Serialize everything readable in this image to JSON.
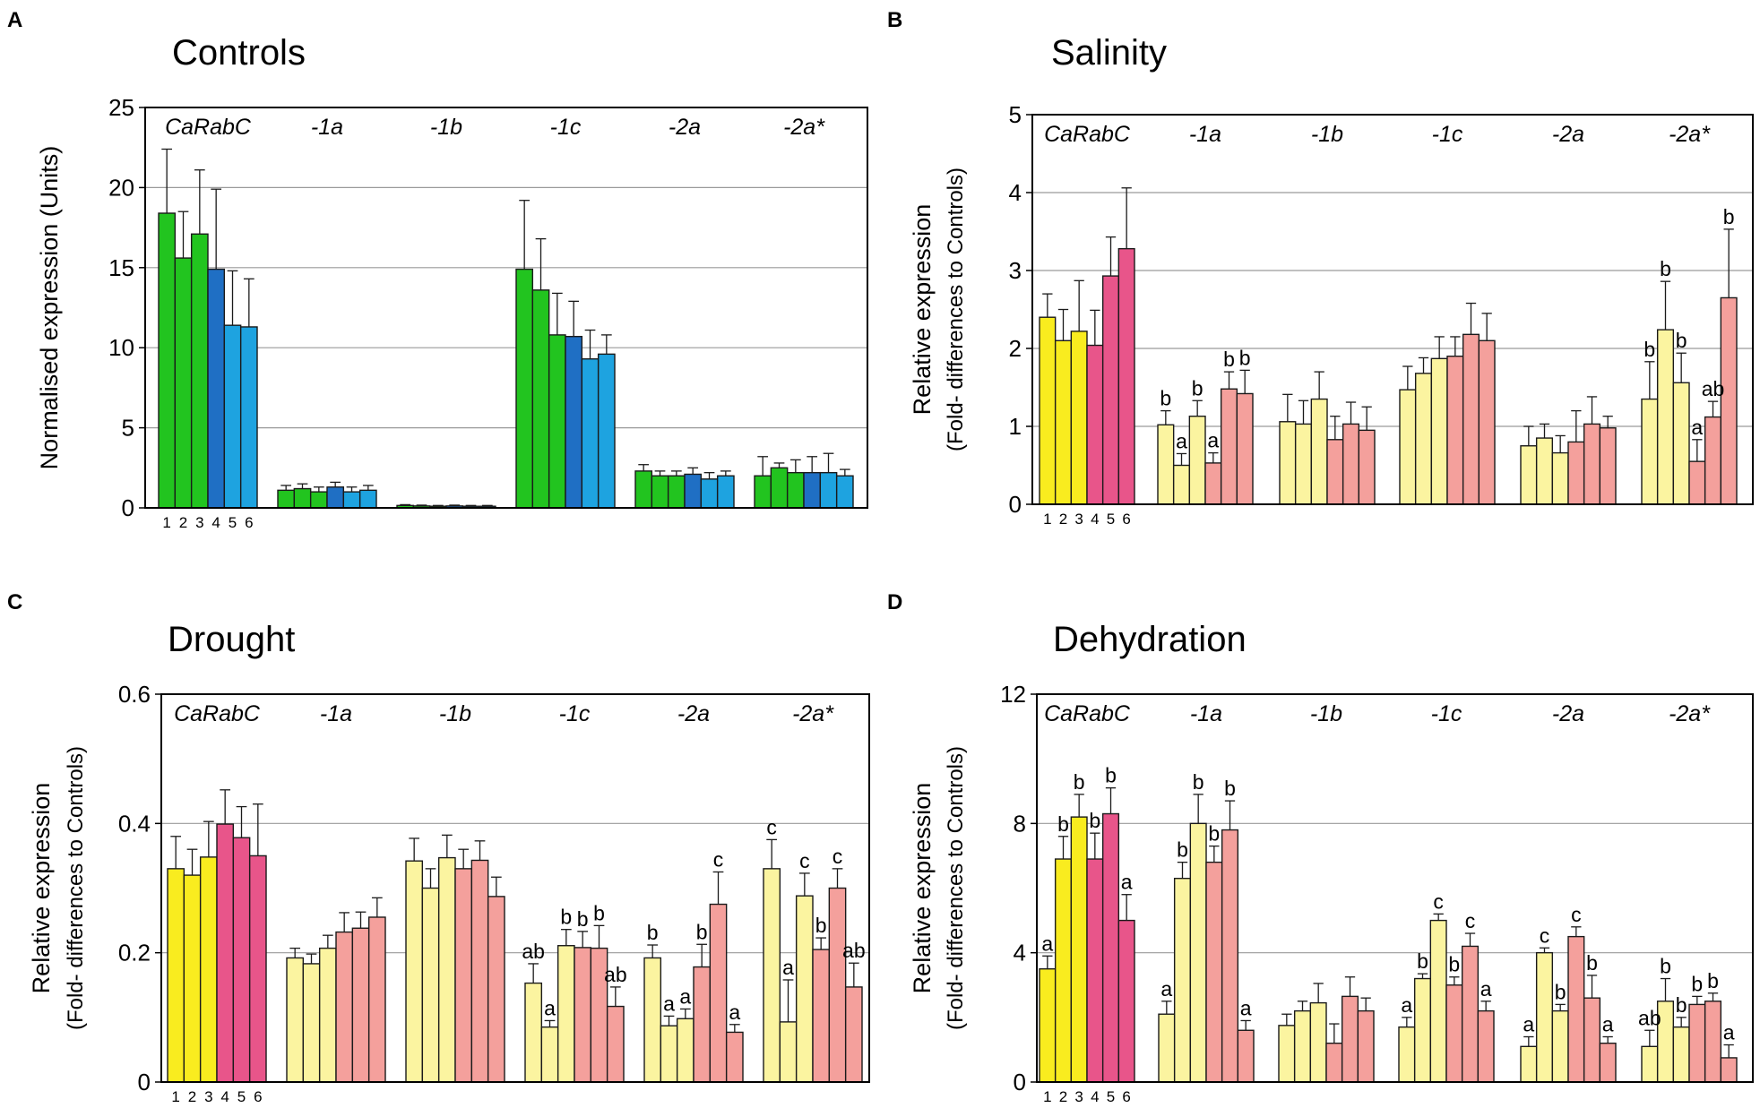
{
  "figure": {
    "x_ticks": [
      "1",
      "2",
      "3",
      "4",
      "5",
      "6"
    ],
    "group_labels": [
      "CaRabC",
      "-1a",
      "-1b",
      "-1c",
      "-2a",
      "-2a*"
    ]
  },
  "chart_data": [
    {
      "panel": "A",
      "type": "bar",
      "title": "Controls",
      "ylabel": "Normalised expression (Units)",
      "ylabel2": "",
      "ylim": [
        0,
        25
      ],
      "yticks": [
        "0",
        "5",
        "10",
        "15",
        "20",
        "25"
      ],
      "colors": [
        "#22c41f",
        "#22c41f",
        "#22c41f",
        "#1f6fc4",
        "#1ea3e0",
        "#1ea3e0"
      ],
      "groups": [
        {
          "label": "CaRabC",
          "values": [
            18.4,
            15.6,
            17.1,
            14.9,
            11.4,
            11.3
          ],
          "errors": [
            4.0,
            2.9,
            4.0,
            5.0,
            3.4,
            3.0
          ]
        },
        {
          "label": "-1a",
          "values": [
            1.1,
            1.2,
            1.0,
            1.3,
            1.0,
            1.1
          ],
          "errors": [
            0.3,
            0.3,
            0.3,
            0.3,
            0.3,
            0.3
          ]
        },
        {
          "label": "-1b",
          "values": [
            0.15,
            0.12,
            0.1,
            0.12,
            0.1,
            0.1
          ],
          "errors": [
            0.05,
            0.05,
            0.05,
            0.05,
            0.05,
            0.05
          ]
        },
        {
          "label": "-1c",
          "values": [
            14.9,
            13.6,
            10.8,
            10.7,
            9.3,
            9.6
          ],
          "errors": [
            4.3,
            3.2,
            2.6,
            2.2,
            1.8,
            1.2
          ]
        },
        {
          "label": "-2a",
          "values": [
            2.3,
            2.0,
            2.0,
            2.1,
            1.8,
            2.0
          ],
          "errors": [
            0.4,
            0.3,
            0.3,
            0.4,
            0.4,
            0.3
          ]
        },
        {
          "label": "-2a*",
          "values": [
            2.0,
            2.5,
            2.2,
            2.2,
            2.2,
            2.0
          ],
          "errors": [
            1.2,
            0.3,
            0.8,
            1.0,
            1.2,
            0.4
          ]
        }
      ],
      "sig_letters": []
    },
    {
      "panel": "B",
      "type": "bar",
      "title": "Salinity",
      "ylabel": "Relative expression",
      "ylabel2": "(Fold- differences to Controls)",
      "ylim": [
        0,
        5
      ],
      "yticks": [
        "0",
        "1",
        "2",
        "3",
        "4",
        "5"
      ],
      "colors": [
        "#f9ec1f",
        "#f9ec1f",
        "#f9ec1f",
        "#e8558a",
        "#e8558a",
        "#e8558a"
      ],
      "colors_pale": [
        "#fbf4a0",
        "#fbf4a0",
        "#fbf4a0",
        "#f4a09c",
        "#f4a09c",
        "#f4a09c"
      ],
      "groups": [
        {
          "label": "CaRabC",
          "values": [
            2.4,
            2.1,
            2.22,
            2.04,
            2.93,
            3.28
          ],
          "errors": [
            0.3,
            0.4,
            0.65,
            0.45,
            0.5,
            0.78
          ]
        },
        {
          "label": "-1a",
          "values": [
            1.02,
            0.5,
            1.13,
            0.53,
            1.48,
            1.42
          ],
          "errors": [
            0.18,
            0.15,
            0.2,
            0.13,
            0.22,
            0.3
          ]
        },
        {
          "label": "-1b",
          "values": [
            1.06,
            1.03,
            1.35,
            0.83,
            1.03,
            0.95
          ],
          "errors": [
            0.35,
            0.3,
            0.35,
            0.3,
            0.28,
            0.3
          ]
        },
        {
          "label": "-1c",
          "values": [
            1.47,
            1.68,
            1.87,
            1.9,
            2.18,
            2.1
          ],
          "errors": [
            0.3,
            0.2,
            0.28,
            0.25,
            0.4,
            0.35
          ]
        },
        {
          "label": "-2a",
          "values": [
            0.75,
            0.85,
            0.66,
            0.8,
            1.03,
            0.98
          ],
          "errors": [
            0.25,
            0.18,
            0.22,
            0.4,
            0.35,
            0.15
          ]
        },
        {
          "label": "-2a*",
          "values": [
            1.35,
            2.24,
            1.56,
            0.55,
            1.12,
            2.65
          ],
          "errors": [
            0.48,
            0.62,
            0.38,
            0.28,
            0.2,
            0.88
          ]
        }
      ],
      "sig_letters": [
        {
          "group": 1,
          "bar": 0,
          "text": "b"
        },
        {
          "group": 1,
          "bar": 1,
          "text": "a"
        },
        {
          "group": 1,
          "bar": 2,
          "text": "b"
        },
        {
          "group": 1,
          "bar": 3,
          "text": "a"
        },
        {
          "group": 1,
          "bar": 4,
          "text": "b"
        },
        {
          "group": 1,
          "bar": 5,
          "text": "b"
        },
        {
          "group": 5,
          "bar": 0,
          "text": "b"
        },
        {
          "group": 5,
          "bar": 1,
          "text": "b"
        },
        {
          "group": 5,
          "bar": 2,
          "text": "b"
        },
        {
          "group": 5,
          "bar": 3,
          "text": "a"
        },
        {
          "group": 5,
          "bar": 4,
          "text": "ab"
        },
        {
          "group": 5,
          "bar": 5,
          "text": "b"
        }
      ]
    },
    {
      "panel": "C",
      "type": "bar",
      "title": "Drought",
      "ylabel": "Relative expression",
      "ylabel2": "(Fold- differences to Controls)",
      "ylim": [
        0,
        0.6
      ],
      "yticks": [
        "0",
        "0.2",
        "0.4",
        "0.6"
      ],
      "colors": [
        "#f9ec1f",
        "#f9ec1f",
        "#f9ec1f",
        "#e8558a",
        "#e8558a",
        "#e8558a"
      ],
      "colors_pale": [
        "#fbf4a0",
        "#fbf4a0",
        "#fbf4a0",
        "#f4a09c",
        "#f4a09c",
        "#f4a09c"
      ],
      "groups": [
        {
          "label": "CaRabC",
          "values": [
            0.33,
            0.32,
            0.348,
            0.399,
            0.378,
            0.35
          ],
          "errors": [
            0.05,
            0.04,
            0.055,
            0.053,
            0.048,
            0.08
          ]
        },
        {
          "label": "-1a",
          "values": [
            0.192,
            0.183,
            0.207,
            0.232,
            0.238,
            0.255
          ],
          "errors": [
            0.015,
            0.015,
            0.02,
            0.03,
            0.025,
            0.03
          ]
        },
        {
          "label": "-1b",
          "values": [
            0.342,
            0.3,
            0.347,
            0.33,
            0.343,
            0.287
          ],
          "errors": [
            0.035,
            0.03,
            0.035,
            0.03,
            0.03,
            0.03
          ]
        },
        {
          "label": "-1c",
          "values": [
            0.153,
            0.085,
            0.211,
            0.208,
            0.207,
            0.117
          ],
          "errors": [
            0.03,
            0.01,
            0.025,
            0.025,
            0.035,
            0.03
          ]
        },
        {
          "label": "-2a",
          "values": [
            0.192,
            0.087,
            0.098,
            0.178,
            0.275,
            0.077
          ],
          "errors": [
            0.02,
            0.015,
            0.015,
            0.035,
            0.05,
            0.012
          ]
        },
        {
          "label": "-2a*",
          "values": [
            0.33,
            0.093,
            0.288,
            0.205,
            0.3,
            0.147
          ],
          "errors": [
            0.045,
            0.065,
            0.035,
            0.018,
            0.03,
            0.037
          ]
        }
      ],
      "sig_letters": [
        {
          "group": 3,
          "bar": 0,
          "text": "ab"
        },
        {
          "group": 3,
          "bar": 1,
          "text": "a"
        },
        {
          "group": 3,
          "bar": 2,
          "text": "b"
        },
        {
          "group": 3,
          "bar": 3,
          "text": "b"
        },
        {
          "group": 3,
          "bar": 4,
          "text": "b"
        },
        {
          "group": 3,
          "bar": 5,
          "text": "ab"
        },
        {
          "group": 4,
          "bar": 0,
          "text": "b"
        },
        {
          "group": 4,
          "bar": 1,
          "text": "a"
        },
        {
          "group": 4,
          "bar": 2,
          "text": "a"
        },
        {
          "group": 4,
          "bar": 3,
          "text": "b"
        },
        {
          "group": 4,
          "bar": 4,
          "text": "c"
        },
        {
          "group": 4,
          "bar": 5,
          "text": "a"
        },
        {
          "group": 5,
          "bar": 0,
          "text": "c"
        },
        {
          "group": 5,
          "bar": 1,
          "text": "a"
        },
        {
          "group": 5,
          "bar": 2,
          "text": "c"
        },
        {
          "group": 5,
          "bar": 3,
          "text": "b"
        },
        {
          "group": 5,
          "bar": 4,
          "text": "c"
        },
        {
          "group": 5,
          "bar": 5,
          "text": "ab"
        }
      ]
    },
    {
      "panel": "D",
      "type": "bar",
      "title": "Dehydration",
      "ylabel": "Relative expression",
      "ylabel2": "(Fold- differences to Controls)",
      "ylim": [
        0,
        12
      ],
      "yticks": [
        "0",
        "4",
        "8",
        "12"
      ],
      "colors": [
        "#f9ec1f",
        "#f9ec1f",
        "#f9ec1f",
        "#e8558a",
        "#e8558a",
        "#e8558a"
      ],
      "colors_pale": [
        "#fbf4a0",
        "#fbf4a0",
        "#fbf4a0",
        "#f4a09c",
        "#f4a09c",
        "#f4a09c"
      ],
      "groups": [
        {
          "label": "CaRabC",
          "values": [
            3.5,
            6.9,
            8.2,
            6.9,
            8.3,
            5.0
          ],
          "errors": [
            0.4,
            0.7,
            0.7,
            0.8,
            0.8,
            0.8
          ]
        },
        {
          "label": "-1a",
          "values": [
            2.1,
            6.3,
            8.0,
            6.8,
            7.8,
            1.6
          ],
          "errors": [
            0.4,
            0.5,
            0.9,
            0.5,
            0.9,
            0.3
          ]
        },
        {
          "label": "-1b",
          "values": [
            1.75,
            2.2,
            2.45,
            1.2,
            2.65,
            2.2
          ],
          "errors": [
            0.35,
            0.3,
            0.6,
            0.6,
            0.6,
            0.4
          ]
        },
        {
          "label": "-1c",
          "values": [
            1.7,
            3.2,
            5.0,
            3.0,
            4.2,
            2.2
          ],
          "errors": [
            0.3,
            0.15,
            0.2,
            0.25,
            0.4,
            0.3
          ]
        },
        {
          "label": "-2a",
          "values": [
            1.1,
            4.0,
            2.2,
            4.5,
            2.6,
            1.2
          ],
          "errors": [
            0.3,
            0.15,
            0.2,
            0.3,
            0.7,
            0.2
          ]
        },
        {
          "label": "-2a*",
          "values": [
            1.1,
            2.5,
            1.7,
            2.4,
            2.5,
            0.75
          ],
          "errors": [
            0.5,
            0.7,
            0.3,
            0.25,
            0.25,
            0.4
          ]
        }
      ],
      "sig_letters": [
        {
          "group": 0,
          "bar": 0,
          "text": "a"
        },
        {
          "group": 0,
          "bar": 1,
          "text": "b"
        },
        {
          "group": 0,
          "bar": 2,
          "text": "b"
        },
        {
          "group": 0,
          "bar": 3,
          "text": "b"
        },
        {
          "group": 0,
          "bar": 4,
          "text": "b"
        },
        {
          "group": 0,
          "bar": 5,
          "text": "a"
        },
        {
          "group": 1,
          "bar": 0,
          "text": "a"
        },
        {
          "group": 1,
          "bar": 1,
          "text": "b"
        },
        {
          "group": 1,
          "bar": 2,
          "text": "b"
        },
        {
          "group": 1,
          "bar": 3,
          "text": "b"
        },
        {
          "group": 1,
          "bar": 4,
          "text": "b"
        },
        {
          "group": 1,
          "bar": 5,
          "text": "a"
        },
        {
          "group": 3,
          "bar": 0,
          "text": "a"
        },
        {
          "group": 3,
          "bar": 1,
          "text": "b"
        },
        {
          "group": 3,
          "bar": 2,
          "text": "c"
        },
        {
          "group": 3,
          "bar": 3,
          "text": "b"
        },
        {
          "group": 3,
          "bar": 4,
          "text": "c"
        },
        {
          "group": 3,
          "bar": 5,
          "text": "a"
        },
        {
          "group": 4,
          "bar": 0,
          "text": "a"
        },
        {
          "group": 4,
          "bar": 1,
          "text": "c"
        },
        {
          "group": 4,
          "bar": 2,
          "text": "b"
        },
        {
          "group": 4,
          "bar": 3,
          "text": "c"
        },
        {
          "group": 4,
          "bar": 4,
          "text": "b"
        },
        {
          "group": 4,
          "bar": 5,
          "text": "a"
        },
        {
          "group": 5,
          "bar": 0,
          "text": "ab"
        },
        {
          "group": 5,
          "bar": 1,
          "text": "b"
        },
        {
          "group": 5,
          "bar": 2,
          "text": "b"
        },
        {
          "group": 5,
          "bar": 3,
          "text": "b"
        },
        {
          "group": 5,
          "bar": 4,
          "text": "b"
        },
        {
          "group": 5,
          "bar": 5,
          "text": "a"
        }
      ]
    }
  ]
}
